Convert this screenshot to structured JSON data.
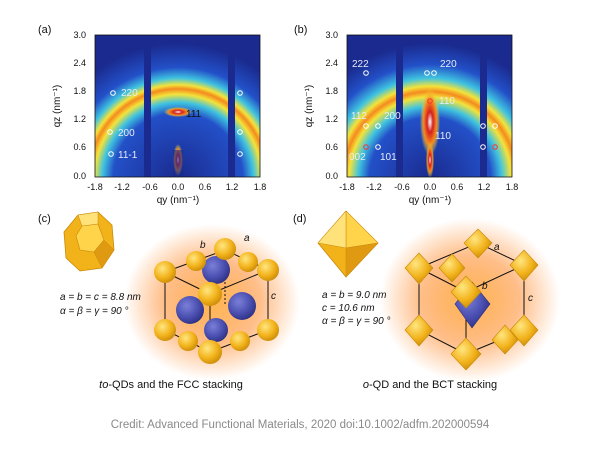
{
  "panels": {
    "a": {
      "label": "(a)",
      "y_ticks": [
        "3.0",
        "2.4",
        "1.8",
        "1.2",
        "0.6",
        "0.0"
      ],
      "x_ticks": [
        "-1.8",
        "-1.2",
        "-0.6",
        "0.0",
        "0.6",
        "1.2",
        "1.8"
      ],
      "ylabel": "qz (nm⁻¹)",
      "xlabel": "qy (nm⁻¹)",
      "indices": [
        "220",
        "111",
        "200",
        "11-1"
      ]
    },
    "b": {
      "label": "(b)",
      "y_ticks": [
        "3.0",
        "2.4",
        "1.8",
        "1.2",
        "0.6",
        "0.0"
      ],
      "x_ticks": [
        "-1.8",
        "-1.2",
        "-0.6",
        "0.0",
        "0.6",
        "1.2",
        "1.8"
      ],
      "ylabel": "qz (nm⁻¹)",
      "xlabel": "qy (nm⁻¹)",
      "indices": [
        "222",
        "220",
        "112",
        "200",
        "110",
        "110",
        "002",
        "101"
      ]
    },
    "c": {
      "label": "(c)",
      "lattice_a": "a",
      "lattice_b": "b",
      "lattice_c": "c",
      "params_line1": "a = b = c = 8.8 nm",
      "params_line2": "α = β = γ = 90 °",
      "caption_italic": "to",
      "caption_rest": "-QDs and the FCC stacking"
    },
    "d": {
      "label": "(d)",
      "lattice_a": "a",
      "lattice_b": "b",
      "lattice_c": "c",
      "params_line1": "a = b = 9.0 nm",
      "params_line2": "c = 10.6 nm",
      "params_line3": "α = β = γ = 90 °",
      "caption_italic": "o",
      "caption_rest": "-QD and the BCT stacking"
    }
  },
  "credit": "Credit: Advanced Functional Materials, 2020 doi:10.1002/adfm.202000594",
  "colors": {
    "detector_background": "#1a2a8e",
    "ring_yellow": "#f5d92a",
    "ring_red": "#d42020",
    "gold_particle": "#f2b21a",
    "blue_particle": "#4a4fb0",
    "glow_orange": "#ff8a2a"
  }
}
